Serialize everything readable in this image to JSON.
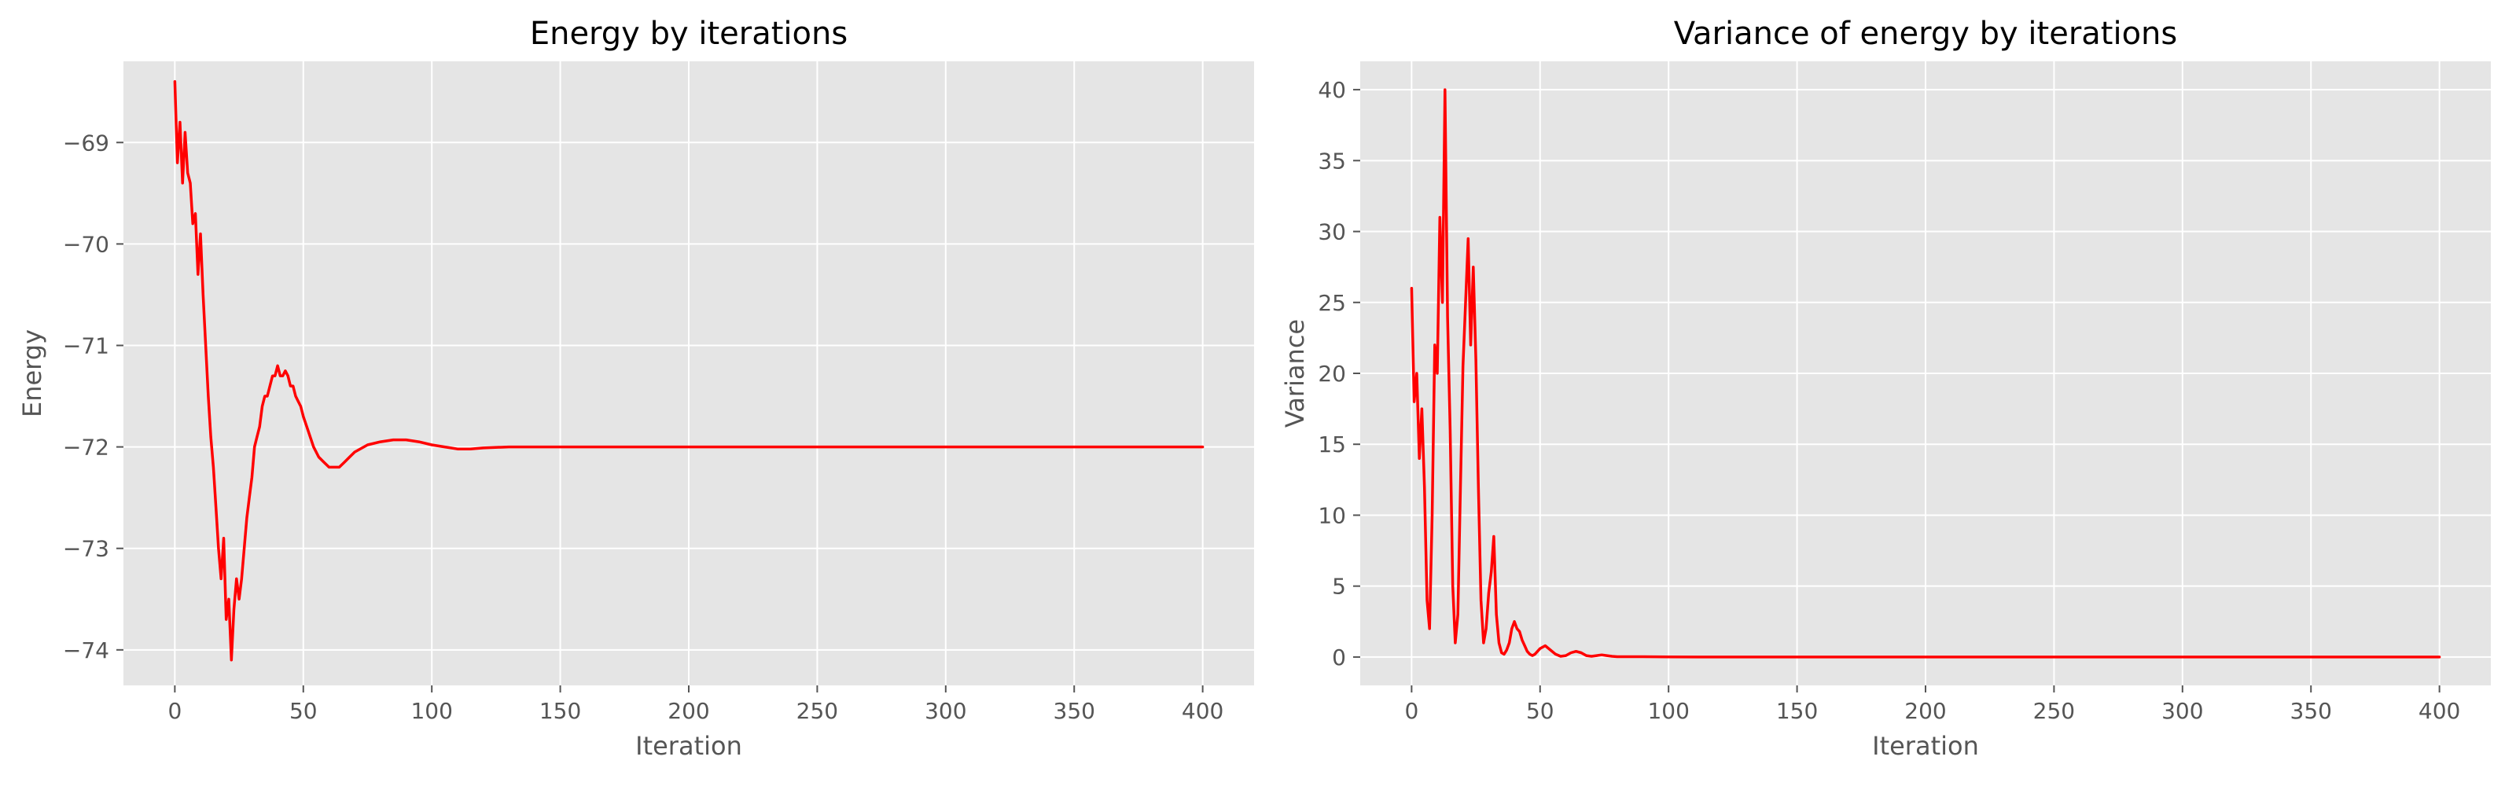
{
  "chart_data": [
    {
      "type": "line",
      "title": "Energy by iterations",
      "xlabel": "Iteration",
      "ylabel": "Energy",
      "xlim": [
        -20,
        420
      ],
      "ylim": [
        -74.35,
        -68.2
      ],
      "xticks": [
        0,
        50,
        100,
        150,
        200,
        250,
        300,
        350,
        400
      ],
      "yticks": [
        -74,
        -73,
        -72,
        -71,
        -70,
        -69
      ],
      "ytick_labels": [
        "−74",
        "−73",
        "−72",
        "−71",
        "−70",
        "−69"
      ],
      "grid": true,
      "series": [
        {
          "color": "#ff0000",
          "x": [
            0,
            1,
            2,
            3,
            4,
            5,
            6,
            7,
            8,
            9,
            10,
            11,
            12,
            13,
            14,
            15,
            16,
            17,
            18,
            19,
            20,
            21,
            22,
            23,
            24,
            25,
            26,
            27,
            28,
            29,
            30,
            31,
            32,
            33,
            34,
            35,
            36,
            37,
            38,
            39,
            40,
            41,
            42,
            43,
            44,
            45,
            46,
            47,
            48,
            49,
            50,
            52,
            54,
            56,
            58,
            60,
            62,
            64,
            66,
            68,
            70,
            75,
            80,
            85,
            90,
            95,
            100,
            105,
            110,
            115,
            120,
            130,
            140,
            150,
            160,
            200,
            250,
            300,
            350,
            400
          ],
          "y": [
            -68.4,
            -69.2,
            -68.8,
            -69.4,
            -68.9,
            -69.3,
            -69.4,
            -69.8,
            -69.7,
            -70.3,
            -69.9,
            -70.5,
            -71.0,
            -71.5,
            -71.9,
            -72.2,
            -72.6,
            -73.0,
            -73.3,
            -72.9,
            -73.7,
            -73.5,
            -74.1,
            -73.6,
            -73.3,
            -73.5,
            -73.3,
            -73.0,
            -72.7,
            -72.5,
            -72.3,
            -72.0,
            -71.9,
            -71.8,
            -71.6,
            -71.5,
            -71.5,
            -71.4,
            -71.3,
            -71.3,
            -71.2,
            -71.3,
            -71.3,
            -71.25,
            -71.3,
            -71.4,
            -71.4,
            -71.5,
            -71.55,
            -71.6,
            -71.7,
            -71.85,
            -72.0,
            -72.1,
            -72.15,
            -72.2,
            -72.2,
            -72.2,
            -72.15,
            -72.1,
            -72.05,
            -71.98,
            -71.95,
            -71.93,
            -71.93,
            -71.95,
            -71.98,
            -72.0,
            -72.02,
            -72.02,
            -72.01,
            -72.0,
            -72.0,
            -72.0,
            -72.0,
            -72.0,
            -72.0,
            -72.0,
            -72.0,
            -72.0
          ]
        }
      ]
    },
    {
      "type": "line",
      "title": "Variance of energy by iterations",
      "xlabel": "Iteration",
      "ylabel": "Variance",
      "xlim": [
        -20,
        420
      ],
      "ylim": [
        -2,
        42
      ],
      "xticks": [
        0,
        50,
        100,
        150,
        200,
        250,
        300,
        350,
        400
      ],
      "yticks": [
        0,
        5,
        10,
        15,
        20,
        25,
        30,
        35,
        40
      ],
      "ytick_labels": [
        "0",
        "5",
        "10",
        "15",
        "20",
        "25",
        "30",
        "35",
        "40"
      ],
      "grid": true,
      "series": [
        {
          "color": "#ff0000",
          "x": [
            0,
            1,
            2,
            3,
            4,
            5,
            6,
            7,
            8,
            9,
            10,
            11,
            12,
            13,
            14,
            15,
            16,
            17,
            18,
            19,
            20,
            21,
            22,
            23,
            24,
            25,
            26,
            27,
            28,
            29,
            30,
            31,
            32,
            33,
            34,
            35,
            36,
            37,
            38,
            39,
            40,
            41,
            42,
            43,
            44,
            45,
            46,
            47,
            48,
            50,
            52,
            54,
            56,
            58,
            60,
            62,
            64,
            66,
            68,
            70,
            72,
            74,
            76,
            78,
            80,
            90,
            100,
            120,
            150,
            200,
            250,
            300,
            350,
            400
          ],
          "y": [
            26.0,
            18.0,
            20.0,
            14.0,
            17.5,
            12.0,
            4.0,
            2.0,
            10.0,
            22.0,
            20.0,
            31.0,
            25.0,
            40.0,
            24.0,
            16.0,
            5.0,
            1.0,
            3.0,
            12.0,
            20.5,
            25.0,
            29.5,
            22.0,
            27.5,
            21.0,
            12.0,
            4.0,
            1.0,
            2.0,
            4.5,
            6.0,
            8.5,
            3.0,
            1.0,
            0.3,
            0.2,
            0.5,
            1.0,
            2.0,
            2.5,
            2.0,
            1.8,
            1.2,
            0.8,
            0.4,
            0.2,
            0.1,
            0.2,
            0.6,
            0.8,
            0.5,
            0.2,
            0.05,
            0.1,
            0.3,
            0.4,
            0.3,
            0.1,
            0.05,
            0.1,
            0.15,
            0.1,
            0.05,
            0.02,
            0.02,
            0.01,
            0.0,
            0.0,
            0.0,
            0.0,
            0.0,
            0.0,
            0.0
          ]
        }
      ]
    }
  ]
}
